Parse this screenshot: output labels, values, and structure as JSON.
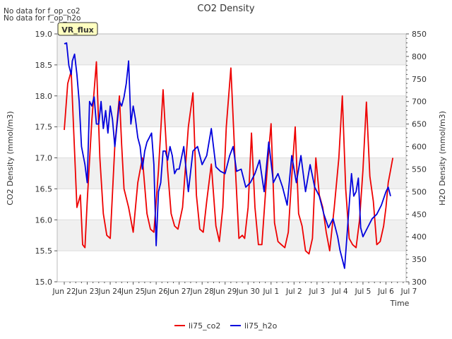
{
  "chart_data": {
    "type": "line",
    "title": "CO2 Density",
    "xlabel": "Time",
    "ylabel_left": "CO2 Density (mmol/m3)",
    "ylabel_right": "H2O Density (mmol/m3)",
    "no_data_messages": [
      "No data for f_op_co2",
      "No data for f_op_h2o"
    ],
    "badge": "VR_flux",
    "x_ticks": [
      "Jun 22",
      "Jun 23",
      "Jun 24",
      "Jun 25",
      "Jun 26",
      "Jun 27",
      "Jun 28",
      "Jun 29",
      "Jun 30",
      "Jul 1",
      "Jul 2",
      "Jul 3",
      "Jul 4",
      "Jul 5",
      "Jul 6",
      "Jul 7"
    ],
    "xlim_days": [
      0,
      15
    ],
    "ylim_left": [
      15.0,
      19.0
    ],
    "yticks_left": [
      "15.0",
      "15.5",
      "16.0",
      "16.5",
      "17.0",
      "17.5",
      "18.0",
      "18.5",
      "19.0"
    ],
    "ylim_right": [
      300,
      850
    ],
    "yticks_right": [
      "300",
      "350",
      "400",
      "450",
      "500",
      "550",
      "600",
      "650",
      "700",
      "750",
      "800",
      "850"
    ],
    "bands": [
      [
        15.5,
        16.0
      ],
      [
        16.5,
        17.0
      ],
      [
        17.5,
        18.0
      ],
      [
        18.5,
        19.0
      ]
    ],
    "legend": [
      {
        "name": "li75_co2",
        "color": "#ee0000"
      },
      {
        "name": "li75_h2o",
        "color": "#0000dd"
      }
    ],
    "series": [
      {
        "name": "li75_co2",
        "color": "#ee0000",
        "axis": "left",
        "x": [
          0.0,
          0.15,
          0.3,
          0.45,
          0.55,
          0.7,
          0.8,
          0.9,
          1.0,
          1.2,
          1.4,
          1.55,
          1.7,
          1.85,
          2.0,
          2.2,
          2.4,
          2.5,
          2.6,
          2.8,
          3.0,
          3.2,
          3.4,
          3.6,
          3.75,
          3.9,
          4.1,
          4.3,
          4.5,
          4.65,
          4.8,
          4.95,
          5.15,
          5.4,
          5.6,
          5.75,
          5.9,
          6.05,
          6.2,
          6.4,
          6.6,
          6.75,
          6.9,
          7.05,
          7.25,
          7.45,
          7.6,
          7.75,
          7.85,
          8.0,
          8.15,
          8.3,
          8.45,
          8.6,
          8.75,
          8.85,
          9.0,
          9.15,
          9.3,
          9.45,
          9.6,
          9.75,
          9.9,
          10.05,
          10.2,
          10.35,
          10.5,
          10.65,
          10.8,
          10.95,
          11.1,
          11.25,
          11.4,
          11.55,
          11.75,
          11.95,
          12.1,
          12.25,
          12.4,
          12.55,
          12.7,
          12.85,
          13.0,
          13.15,
          13.3,
          13.45,
          13.6,
          13.75,
          13.9,
          14.0,
          14.1,
          14.2,
          14.3
        ],
        "values": [
          17.45,
          18.2,
          18.4,
          17.1,
          16.2,
          16.4,
          15.6,
          15.55,
          16.3,
          17.6,
          18.55,
          17.0,
          16.1,
          15.75,
          15.7,
          17.2,
          18.0,
          17.2,
          16.5,
          16.2,
          15.8,
          16.6,
          17.0,
          16.1,
          15.85,
          15.8,
          16.8,
          18.1,
          16.8,
          16.1,
          15.9,
          15.85,
          16.2,
          17.5,
          18.05,
          16.4,
          15.85,
          15.8,
          16.3,
          16.9,
          15.9,
          15.65,
          16.2,
          17.5,
          18.45,
          16.8,
          15.7,
          15.75,
          15.7,
          16.2,
          17.4,
          16.2,
          15.6,
          15.6,
          16.4,
          16.9,
          17.55,
          15.95,
          15.65,
          15.6,
          15.55,
          15.8,
          16.7,
          17.5,
          16.1,
          15.9,
          15.5,
          15.45,
          15.7,
          17.0,
          16.4,
          16.2,
          15.8,
          15.5,
          16.2,
          17.0,
          18.0,
          16.5,
          15.7,
          15.6,
          15.55,
          16.0,
          16.8,
          17.9,
          16.7,
          16.3,
          15.6,
          15.65,
          15.9,
          16.2,
          16.6,
          16.8,
          17.0
        ]
      },
      {
        "name": "li75_h2o",
        "color": "#0000dd",
        "axis": "right",
        "x": [
          0.0,
          0.1,
          0.2,
          0.3,
          0.35,
          0.45,
          0.55,
          0.65,
          0.75,
          0.9,
          1.0,
          1.1,
          1.2,
          1.3,
          1.4,
          1.5,
          1.6,
          1.7,
          1.8,
          1.9,
          2.0,
          2.1,
          2.2,
          2.3,
          2.4,
          2.5,
          2.6,
          2.7,
          2.8,
          2.9,
          3.0,
          3.1,
          3.2,
          3.3,
          3.4,
          3.5,
          3.6,
          3.7,
          3.8,
          3.9,
          4.0,
          4.1,
          4.2,
          4.3,
          4.4,
          4.5,
          4.6,
          4.7,
          4.8,
          4.9,
          5.0,
          5.2,
          5.4,
          5.6,
          5.8,
          6.0,
          6.2,
          6.4,
          6.6,
          6.8,
          7.0,
          7.2,
          7.35,
          7.5,
          7.7,
          7.9,
          8.1,
          8.3,
          8.5,
          8.7,
          8.9,
          9.1,
          9.3,
          9.5,
          9.7,
          9.9,
          10.1,
          10.3,
          10.5,
          10.7,
          10.9,
          11.1,
          11.3,
          11.5,
          11.7,
          11.9,
          12.0,
          12.1,
          12.2,
          12.3,
          12.4,
          12.5,
          12.6,
          12.7,
          12.8,
          12.9,
          13.0,
          13.2,
          13.4,
          13.6,
          13.8,
          14.0,
          14.1,
          14.2
        ],
        "values": [
          828,
          830,
          780,
          760,
          790,
          805,
          760,
          700,
          600,
          560,
          520,
          700,
          690,
          710,
          650,
          650,
          700,
          640,
          680,
          630,
          690,
          660,
          600,
          650,
          700,
          690,
          710,
          740,
          790,
          650,
          690,
          660,
          620,
          600,
          550,
          590,
          610,
          620,
          630,
          560,
          380,
          500,
          520,
          590,
          590,
          570,
          600,
          580,
          540,
          550,
          550,
          600,
          500,
          590,
          600,
          560,
          580,
          640,
          555,
          545,
          540,
          580,
          600,
          545,
          550,
          510,
          520,
          540,
          570,
          500,
          610,
          520,
          540,
          510,
          470,
          580,
          520,
          580,
          500,
          560,
          510,
          490,
          450,
          420,
          440,
          400,
          370,
          350,
          330,
          400,
          470,
          540,
          490,
          500,
          530,
          420,
          400,
          420,
          440,
          450,
          470,
          500,
          510,
          490
        ]
      }
    ]
  }
}
